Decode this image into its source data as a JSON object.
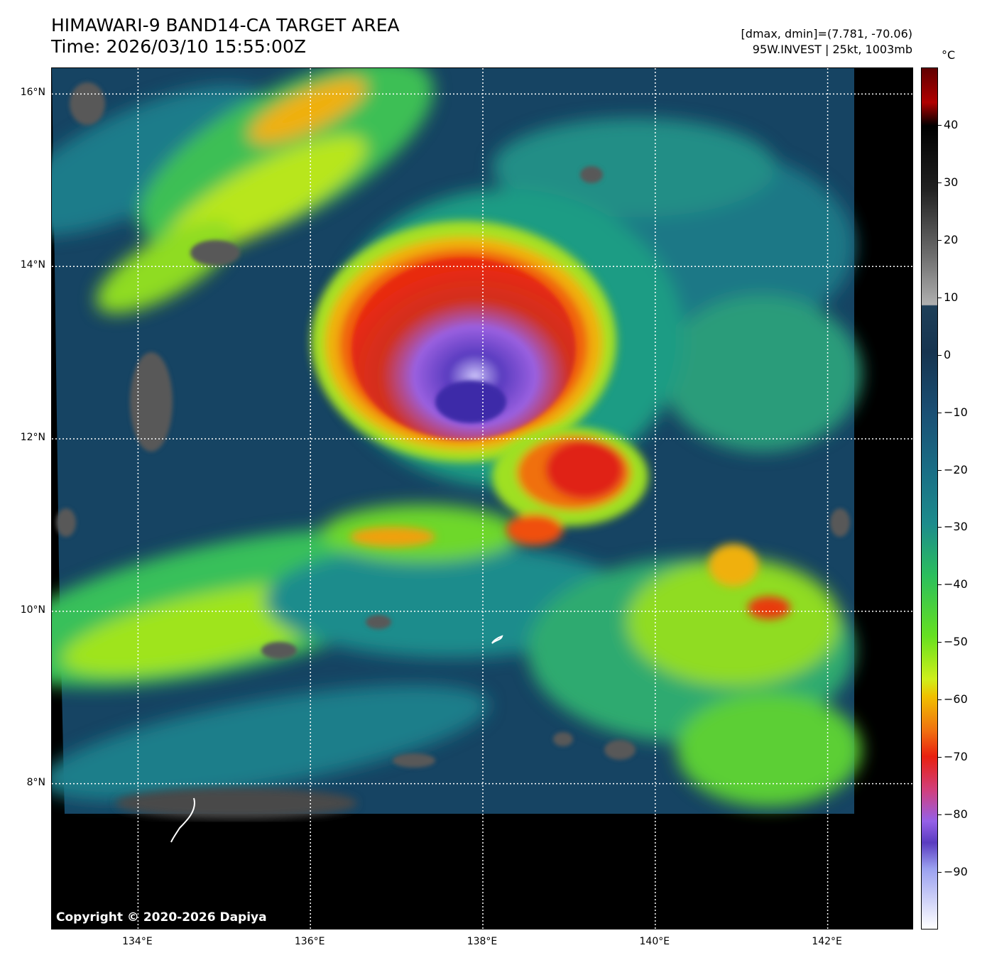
{
  "header": {
    "title_line1": "HIMAWARI-9 BAND14-CA TARGET AREA",
    "title_line2": "Time: 2026/03/10 15:55:00Z",
    "meta_line1": "[dmax, dmin]=(7.781, -70.06)",
    "meta_line2": "95W.INVEST | 25kt, 1003mb"
  },
  "map": {
    "copyright": "Copyright © 2020-2026 Dapiya",
    "lat_labels": [
      "16°N",
      "14°N",
      "12°N",
      "10°N",
      "8°N"
    ],
    "lon_labels": [
      "134°E",
      "136°E",
      "138°E",
      "140°E",
      "142°E"
    ],
    "lat_values": [
      16,
      14,
      12,
      10,
      8
    ],
    "lon_values": [
      134,
      136,
      138,
      140,
      142
    ],
    "extent": {
      "lon_min": 133.0,
      "lon_max": 143.0,
      "lat_min": 6.3,
      "lat_max": 16.3
    },
    "cloud_top_min_c": -70.06,
    "cloud_top_max_c": 7.781
  },
  "colorbar": {
    "unit": "°C",
    "range_c": [
      -100,
      50
    ],
    "tick_labels": [
      "40",
      "30",
      "20",
      "10",
      "0",
      "−10",
      "−20",
      "−30",
      "−40",
      "−50",
      "−60",
      "−70",
      "−80",
      "−90"
    ],
    "tick_values": [
      40,
      30,
      20,
      10,
      0,
      -10,
      -20,
      -30,
      -40,
      -50,
      -60,
      -70,
      -80,
      -90
    ]
  },
  "colors": {
    "background": "#ffffff",
    "no_data": "#000000",
    "cold_core": "#8a5ce0",
    "convection_red": "#e02418",
    "warm_ocean": "#1a4a6a"
  }
}
